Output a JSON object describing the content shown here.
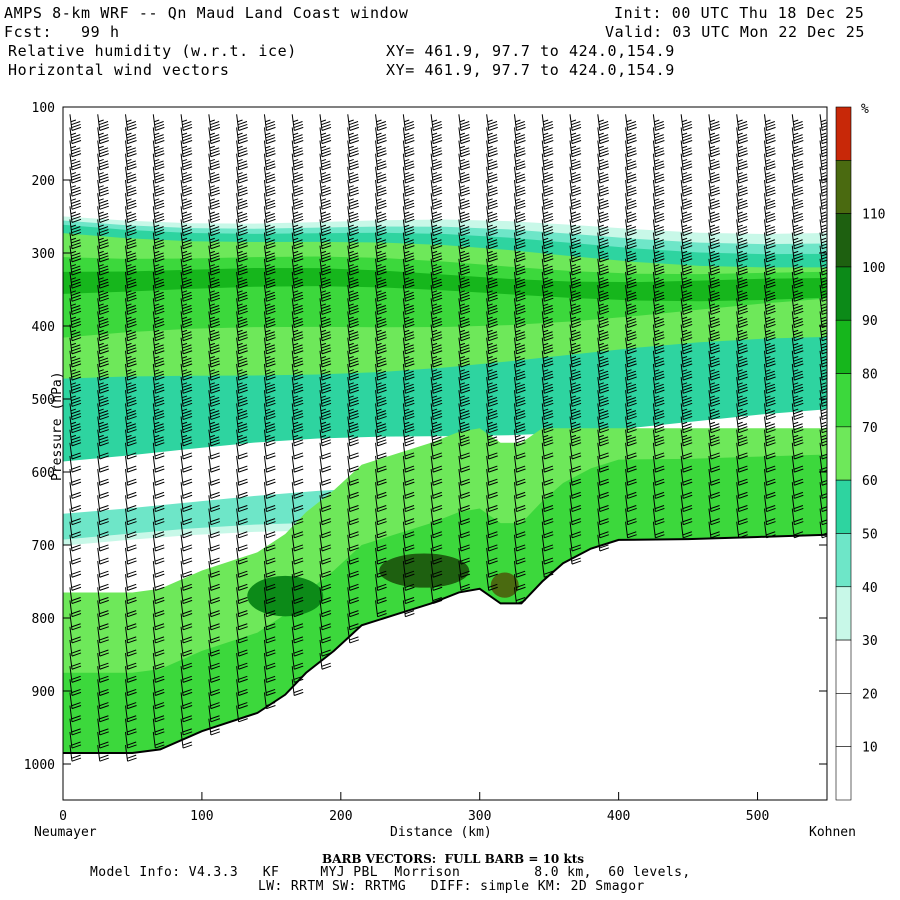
{
  "header": {
    "title": "AMPS 8-km WRF -- Qn Maud Land Coast window",
    "init": "Init: 00 UTC Thu 18 Dec 25",
    "fcst": "Fcst:   99 h",
    "valid": "Valid: 03 UTC Mon 22 Dec 25",
    "field1": "Relative humidity (w.r.t. ice)",
    "xy1": "XY= 461.9, 97.7 to 424.0,154.9",
    "field2": "Horizontal wind vectors",
    "xy2": "XY= 461.9, 97.7 to 424.0,154.9"
  },
  "footer": {
    "barb": "BARB VECTORS:  FULL BARB = 10 kts",
    "line1": "Model Info: V4.3.3   KF     MYJ PBL  Morrison         8.0 km,  60 levels,",
    "line2": "LW: RRTM SW: RRTMG   DIFF: simple KM: 2D Smagor"
  },
  "chart_data": {
    "type": "filled-contour cross-section with wind barbs",
    "title": "Relative humidity (w.r.t. ice) and horizontal wind vectors",
    "xlabel": "Distance (km)",
    "ylabel": "Pressure (hPa)",
    "xlim": [
      0,
      550
    ],
    "ylim": [
      1050,
      100
    ],
    "x_ticks": [
      0,
      100,
      200,
      300,
      400,
      500
    ],
    "y_ticks": [
      100,
      200,
      300,
      400,
      500,
      600,
      700,
      800,
      900,
      1000
    ],
    "left_endpoint": "Neumayer",
    "right_endpoint": "Kohnen",
    "colorbar": {
      "unit": "%",
      "levels": [
        10,
        20,
        30,
        40,
        50,
        60,
        70,
        80,
        90,
        100,
        110
      ],
      "colors": [
        "#ffffff",
        "#ffffff",
        "#ffffff",
        "#c8f8e8",
        "#6ee6c8",
        "#2ed4a0",
        "#6ee85a",
        "#3cd83c",
        "#16b61c",
        "#0c8a18",
        "#1e6010",
        "#4a6a10",
        "#c82808"
      ]
    },
    "terrain_surface_hpa": [
      {
        "km": 0,
        "p": 985
      },
      {
        "km": 50,
        "p": 985
      },
      {
        "km": 70,
        "p": 980
      },
      {
        "km": 100,
        "p": 955
      },
      {
        "km": 140,
        "p": 930
      },
      {
        "km": 160,
        "p": 905
      },
      {
        "km": 175,
        "p": 875
      },
      {
        "km": 195,
        "p": 845
      },
      {
        "km": 215,
        "p": 810
      },
      {
        "km": 240,
        "p": 795
      },
      {
        "km": 265,
        "p": 780
      },
      {
        "km": 285,
        "p": 765
      },
      {
        "km": 300,
        "p": 760
      },
      {
        "km": 315,
        "p": 780
      },
      {
        "km": 330,
        "p": 780
      },
      {
        "km": 345,
        "p": 750
      },
      {
        "km": 360,
        "p": 725
      },
      {
        "km": 380,
        "p": 705
      },
      {
        "km": 400,
        "p": 693
      },
      {
        "km": 450,
        "p": 692
      },
      {
        "km": 500,
        "p": 689
      },
      {
        "km": 550,
        "p": 686
      }
    ],
    "rh_layers": [
      {
        "range": "30-40",
        "p_top_left": 250,
        "p_top_right": 270,
        "p_bottom_left": 700,
        "p_bottom_right": 660
      },
      {
        "range": "40-50",
        "p_top_left": 255,
        "p_top_right": 285,
        "p_bottom_left": 690,
        "p_bottom_right": 650
      },
      {
        "range": "50-60",
        "p_top_left": 260,
        "p_top_right": 300,
        "p_bottom_left": 620,
        "p_bottom_right": 600
      },
      {
        "range": "60-70",
        "p_top_left": 270,
        "p_top_right": 320,
        "p_bottom_left": 480,
        "p_bottom_right": 420
      },
      {
        "range": "70-80",
        "p_top_left": 300,
        "p_top_right": 330,
        "p_bottom_left": 420,
        "p_bottom_right": 370
      },
      {
        "range": "80-90",
        "p_top_left": 320,
        "p_top_right": 340,
        "p_bottom_left": 350,
        "p_bottom_right": 360
      },
      {
        "range": "dry-slot 0-30",
        "p_top_left": 580,
        "p_top_right": 520,
        "p_bottom_left": 650,
        "p_bottom_right": 600
      }
    ],
    "boundary_layer_maxima": [
      {
        "range": "80-90",
        "km_center": 160,
        "p_center": 770
      },
      {
        "range": "90-100",
        "km_center": 260,
        "p_center": 735
      },
      {
        "range": "100-110",
        "km_center": 318,
        "p_center": 755
      }
    ],
    "wind_barbs": {
      "column_spacing_km": 20,
      "direction_deg": 210,
      "speed_upper_kts": 35,
      "speed_lower_kts": 20
    }
  }
}
